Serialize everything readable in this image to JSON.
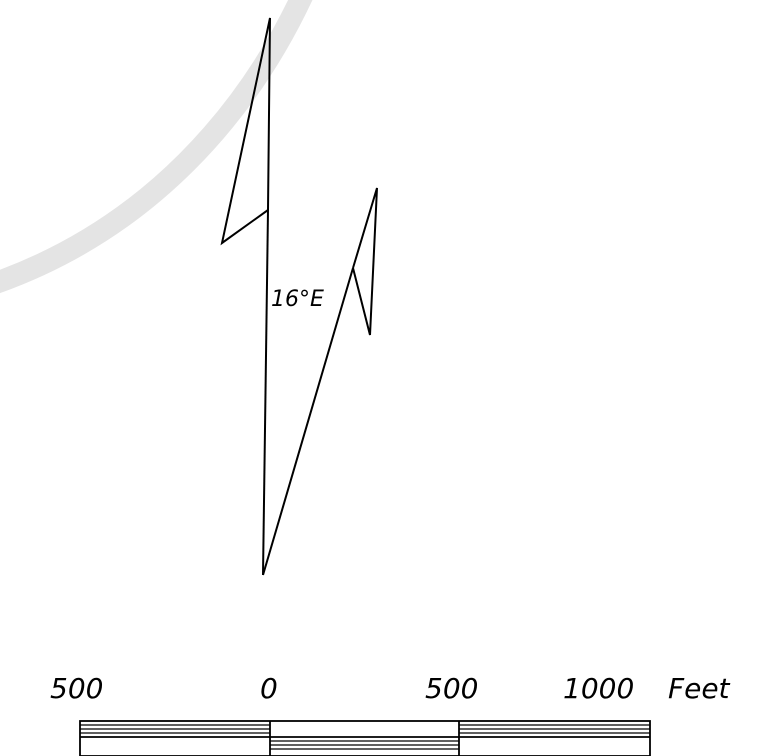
{
  "north_arrow": {
    "declination_label": "16°E"
  },
  "scale_bar": {
    "labels": [
      "500",
      "0",
      "500",
      "1000"
    ],
    "unit": "Feet"
  },
  "colors": {
    "ink": "#000000",
    "background": "#ffffff",
    "watermark": "#e4e4e4"
  }
}
